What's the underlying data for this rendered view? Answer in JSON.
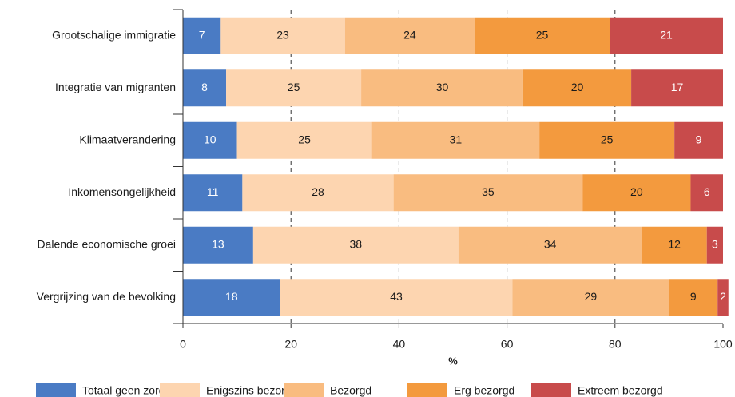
{
  "chart_data": {
    "type": "stacked-bar-horizontal",
    "categories": [
      "Grootschalige immigratie",
      "Integratie van migranten",
      "Klimaatverandering",
      "Inkomensongelijkheid",
      "Dalende economische groei",
      "Vergrijzing van de bevolking"
    ],
    "series": [
      {
        "name": "Totaal geen zorgen",
        "color": "#4a7bc4",
        "values": [
          7,
          8,
          10,
          11,
          13,
          18
        ]
      },
      {
        "name": "Enigszins bezorgd",
        "color": "#fdd5b0",
        "values": [
          23,
          25,
          25,
          28,
          38,
          43
        ]
      },
      {
        "name": "Bezorgd",
        "color": "#f9bc80",
        "values": [
          24,
          30,
          31,
          35,
          34,
          29
        ]
      },
      {
        "name": "Erg bezorgd",
        "color": "#f39a3e",
        "values": [
          25,
          20,
          25,
          20,
          12,
          9
        ]
      },
      {
        "name": "Extreem bezorgd",
        "color": "#c84b4b",
        "values": [
          21,
          17,
          9,
          6,
          3,
          2
        ]
      }
    ],
    "xlabel": "%",
    "xlim": [
      0,
      100
    ],
    "xticks": [
      0,
      20,
      40,
      60,
      80,
      100
    ],
    "grid": true
  }
}
